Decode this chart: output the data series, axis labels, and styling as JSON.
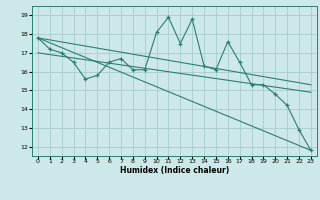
{
  "title": "",
  "xlabel": "Humidex (Indice chaleur)",
  "bg_color": "#cce8e8",
  "grid_color": "#aacccc",
  "line_color": "#2e7d6e",
  "x_ticks": [
    0,
    1,
    2,
    3,
    4,
    5,
    6,
    7,
    8,
    9,
    10,
    11,
    12,
    13,
    14,
    15,
    16,
    17,
    18,
    19,
    20,
    21,
    22,
    23
  ],
  "y_ticks": [
    12,
    13,
    14,
    15,
    16,
    17,
    18,
    19
  ],
  "xlim": [
    -0.5,
    23.5
  ],
  "ylim": [
    11.5,
    19.5
  ],
  "series1_x": [
    0,
    1,
    2,
    3,
    4,
    5,
    6,
    7,
    8,
    9,
    10,
    11,
    12,
    13,
    14,
    15,
    16,
    17,
    18,
    19,
    20,
    21,
    22,
    23
  ],
  "series1_y": [
    17.8,
    17.2,
    17.0,
    16.5,
    15.6,
    15.8,
    16.5,
    16.7,
    16.1,
    16.1,
    18.1,
    18.9,
    17.5,
    18.8,
    16.3,
    16.1,
    17.6,
    16.5,
    15.3,
    15.3,
    14.8,
    14.2,
    12.9,
    11.8
  ],
  "trend1_x": [
    0,
    23
  ],
  "trend1_y": [
    17.8,
    15.3
  ],
  "trend2_x": [
    0,
    23
  ],
  "trend2_y": [
    17.0,
    14.9
  ],
  "trend3_x": [
    0,
    23
  ],
  "trend3_y": [
    17.8,
    11.8
  ]
}
